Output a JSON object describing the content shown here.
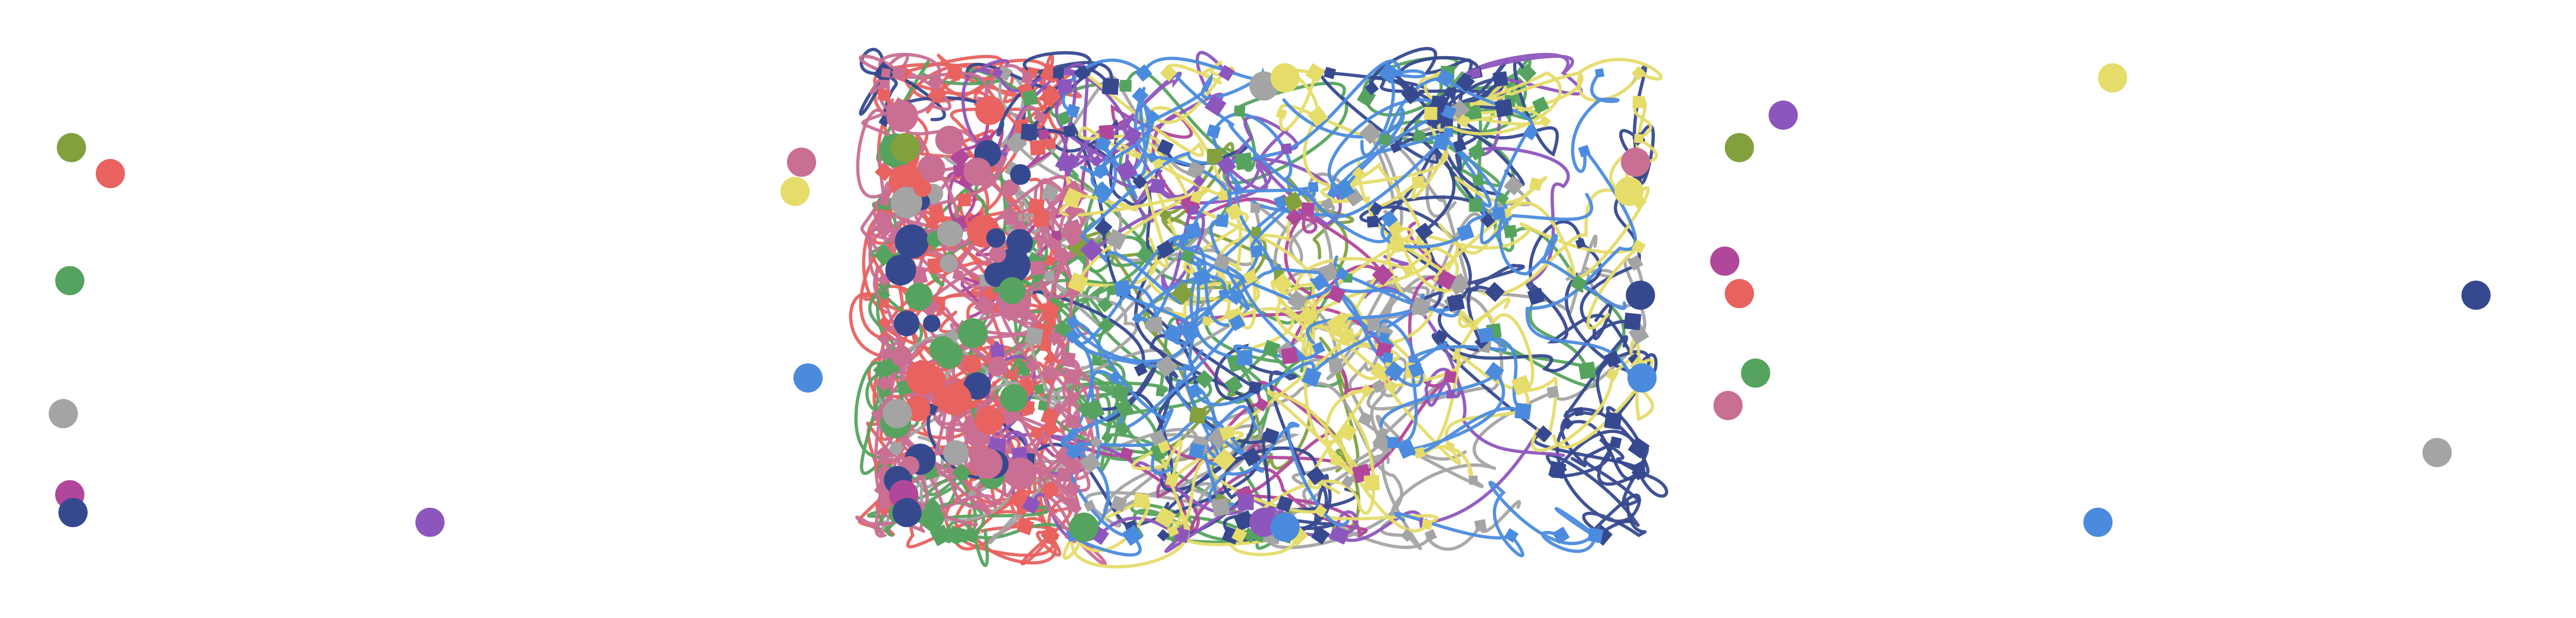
{
  "chart_data": {
    "type": "scatter",
    "title": "",
    "xlabel": "",
    "ylabel": "",
    "grid": false,
    "axes_visible": false,
    "xlim": [
      0,
      1600
    ],
    "ylim": [
      0,
      380
    ],
    "colors": {
      "red": "#e8625f",
      "olive": "#82a03e",
      "green": "#56a35f",
      "gray": "#a4a4a4",
      "magenta": "#b1479a",
      "navy": "#36498f",
      "purple": "#8d56bd",
      "pink": "#c96f93",
      "yellow": "#e6dc6a",
      "blue": "#4b8bde"
    },
    "series": [
      {
        "color": "red",
        "points": [
          [
            68,
            107
          ],
          [
            1072,
            181
          ],
          [
            610,
            68
          ]
        ]
      },
      {
        "color": "olive",
        "points": [
          [
            44,
            91
          ],
          [
            558,
            91
          ],
          [
            1072,
            91
          ]
        ]
      },
      {
        "color": "green",
        "points": [
          [
            43,
            173
          ],
          [
            1082,
            230
          ],
          [
            668,
            325
          ]
        ]
      },
      {
        "color": "gray",
        "points": [
          [
            39,
            255
          ],
          [
            553,
            255
          ],
          [
            779,
            53
          ],
          [
            1502,
            279
          ]
        ]
      },
      {
        "color": "magenta",
        "points": [
          [
            43,
            305
          ],
          [
            557,
            305
          ],
          [
            1063,
            161
          ]
        ]
      },
      {
        "color": "navy",
        "points": [
          [
            45,
            316
          ],
          [
            559,
            316
          ],
          [
            1011,
            182
          ],
          [
            1526,
            182
          ]
        ]
      },
      {
        "color": "purple",
        "points": [
          [
            265,
            322
          ],
          [
            779,
            322
          ],
          [
            1099,
            71
          ]
        ]
      },
      {
        "color": "pink",
        "points": [
          [
            494,
            100
          ],
          [
            1008,
            100
          ],
          [
            1065,
            250
          ]
        ]
      },
      {
        "color": "yellow",
        "points": [
          [
            490,
            118
          ],
          [
            792,
            48
          ],
          [
            1004,
            118
          ],
          [
            1302,
            48
          ]
        ]
      },
      {
        "color": "blue",
        "points": [
          [
            498,
            233
          ],
          [
            792,
            325
          ],
          [
            1012,
            233
          ],
          [
            1293,
            322
          ]
        ]
      }
    ],
    "trajectory_region": {
      "x": [
        545,
        1010
      ],
      "y": [
        45,
        330
      ]
    }
  }
}
